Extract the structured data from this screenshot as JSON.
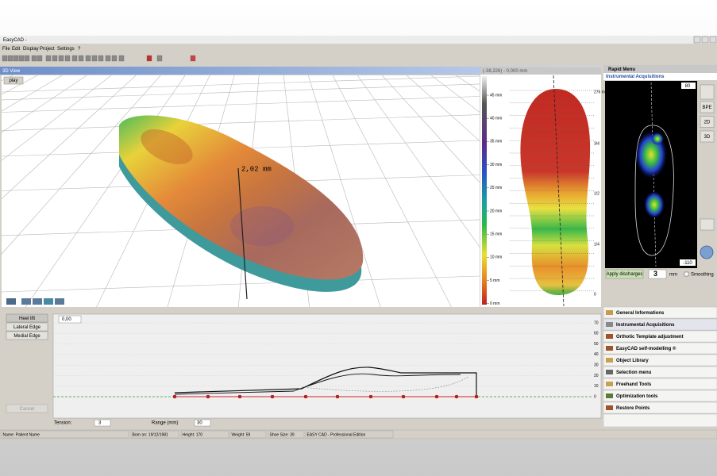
{
  "window": {
    "title": "EasyCAD -"
  },
  "menu": [
    "File",
    "Edit",
    "Display",
    "Project",
    "Settings",
    "?"
  ],
  "view3d": {
    "title": "3D View",
    "play": "play",
    "measurement": "2,02 mm"
  },
  "map": {
    "header": "(-38,226) - 0,000 mm",
    "scale": [
      "45 mm",
      "40 mm",
      "35 mm",
      "30 mm",
      "25 mm",
      "20 mm",
      "15 mm",
      "10 mm",
      "5 mm",
      "0 mm"
    ],
    "ruler": [
      "276 mm",
      "3/4",
      "1/2",
      "1/4",
      "0"
    ]
  },
  "rapid": {
    "title": "Rapid Menu",
    "panel": "Instrumental Acquisitions",
    "top_value": "80",
    "bottom_value": "-110",
    "buttons": [
      "BPE",
      "2D",
      "3D"
    ],
    "apply": "Apply discharges",
    "discharge_value": "3",
    "unit": "mm",
    "smoothing": "Smoothing"
  },
  "tools": [
    "General Informations",
    "Instrumental Acquisitions",
    "Orthotic Template adjustment",
    "EasyCAD self-modelling ®",
    "Object Library",
    "Selection menu",
    "Freehand Tools",
    "Optimization tools",
    "Restore Points"
  ],
  "profile": {
    "buttons": [
      "Heel lift",
      "Lateral Edge",
      "Medial Edge"
    ],
    "cancel": "Cancel",
    "offset": "0,00",
    "yticks": [
      "70",
      "60",
      "50",
      "40",
      "30",
      "20",
      "10",
      "0"
    ],
    "tension_label": "Tension:",
    "tension": "3",
    "range_label": "Range (mm)",
    "range": "30"
  },
  "status": [
    "Name: Patient Name",
    "Born on: 19/12/1981",
    "Height: 170",
    "Weight: 59",
    "Shoe Size: 39",
    "EASY CAD - Professional Edition"
  ]
}
